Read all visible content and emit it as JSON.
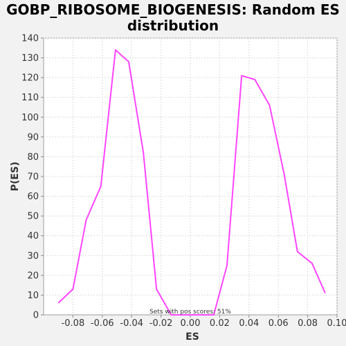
{
  "chart_data": {
    "type": "line",
    "title_line1": "GOBP_RIBOSOME_BIOGENESIS: Random ES",
    "title_line2": "distribution",
    "xlabel": "ES",
    "ylabel": "P(ES)",
    "annotation": "Sets with pos scores: 51%",
    "xlim": [
      -0.1,
      0.1
    ],
    "ylim": [
      0,
      140
    ],
    "x_ticks": [
      -0.08,
      -0.06,
      -0.04,
      -0.02,
      0.0,
      0.02,
      0.04,
      0.06,
      0.08,
      0.1
    ],
    "x_tick_labels": [
      "-0.08",
      "-0.06",
      "-0.04",
      "-0.02",
      "0.00",
      "0.02",
      "0.04",
      "0.06",
      "0.08",
      "0.10"
    ],
    "y_ticks": [
      0,
      10,
      20,
      30,
      40,
      50,
      60,
      70,
      80,
      90,
      100,
      110,
      120,
      130,
      140
    ],
    "y_tick_labels": [
      "0",
      "10",
      "20",
      "30",
      "40",
      "50",
      "60",
      "70",
      "80",
      "90",
      "100",
      "110",
      "120",
      "130",
      "140"
    ],
    "grid": true,
    "line_color": "#ff44ff",
    "series": [
      {
        "x": [
          -0.09,
          -0.08,
          -0.071,
          -0.061,
          -0.051,
          -0.042,
          -0.032,
          -0.023,
          -0.013,
          -0.003,
          0.006,
          0.016,
          0.025,
          0.035,
          0.044,
          0.054,
          0.064,
          0.073,
          0.083,
          0.092
        ],
        "y": [
          6,
          13,
          48,
          65,
          134,
          128,
          82,
          13,
          0,
          0,
          0,
          0,
          25,
          121,
          119,
          106,
          71,
          32,
          26,
          11
        ]
      }
    ]
  }
}
